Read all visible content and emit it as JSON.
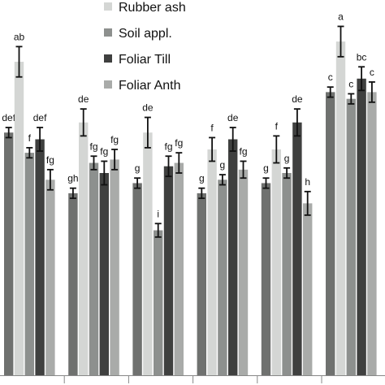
{
  "chart_data": {
    "type": "bar",
    "title": "",
    "xlabel": "",
    "ylabel": "",
    "categories": [
      "",
      "",
      "",
      "",
      "",
      ""
    ],
    "ylim": [
      0,
      100
    ],
    "grid": false,
    "legend_position": "top-right",
    "series": [
      {
        "name": "",
        "color": "#6f716f",
        "values": [
          72,
          54,
          57,
          54,
          57,
          84
        ],
        "errors": [
          1.5,
          1.5,
          1.5,
          1.5,
          1.5,
          1.5
        ],
        "letters": [
          "def",
          "gh",
          "g",
          "g",
          "g",
          "c"
        ]
      },
      {
        "name": "Rubber ash",
        "color": "#d4d6d4",
        "values": [
          93,
          75,
          72,
          67,
          67,
          99
        ],
        "errors": [
          4.5,
          4,
          4.5,
          3.5,
          4,
          4.5
        ],
        "letters": [
          "ab",
          "de",
          "de",
          "f",
          "f",
          "a"
        ]
      },
      {
        "name": "Soil appl.",
        "color": "#8d908e",
        "values": [
          66,
          63,
          43,
          58,
          60,
          82
        ],
        "errors": [
          1.5,
          2,
          2,
          1.5,
          1.5,
          1.5
        ],
        "letters": [
          "f",
          "fg",
          "i",
          "g",
          "g",
          "c"
        ]
      },
      {
        "name": "Foliar Till",
        "color": "#3f403f",
        "values": [
          70,
          60,
          62,
          70,
          75,
          88
        ],
        "errors": [
          3.5,
          3.5,
          3,
          3.5,
          4,
          3.5
        ],
        "letters": [
          "def",
          "fg",
          "fg",
          "de",
          "de",
          "bc"
        ]
      },
      {
        "name": "Foliar Anth",
        "color": "#a9aba9",
        "values": [
          58,
          64,
          63,
          61,
          51,
          84
        ],
        "errors": [
          3,
          3,
          3,
          2.5,
          3.5,
          3
        ],
        "letters": [
          "fg",
          "fg",
          "fg",
          "fg",
          "h",
          "c"
        ]
      }
    ]
  }
}
